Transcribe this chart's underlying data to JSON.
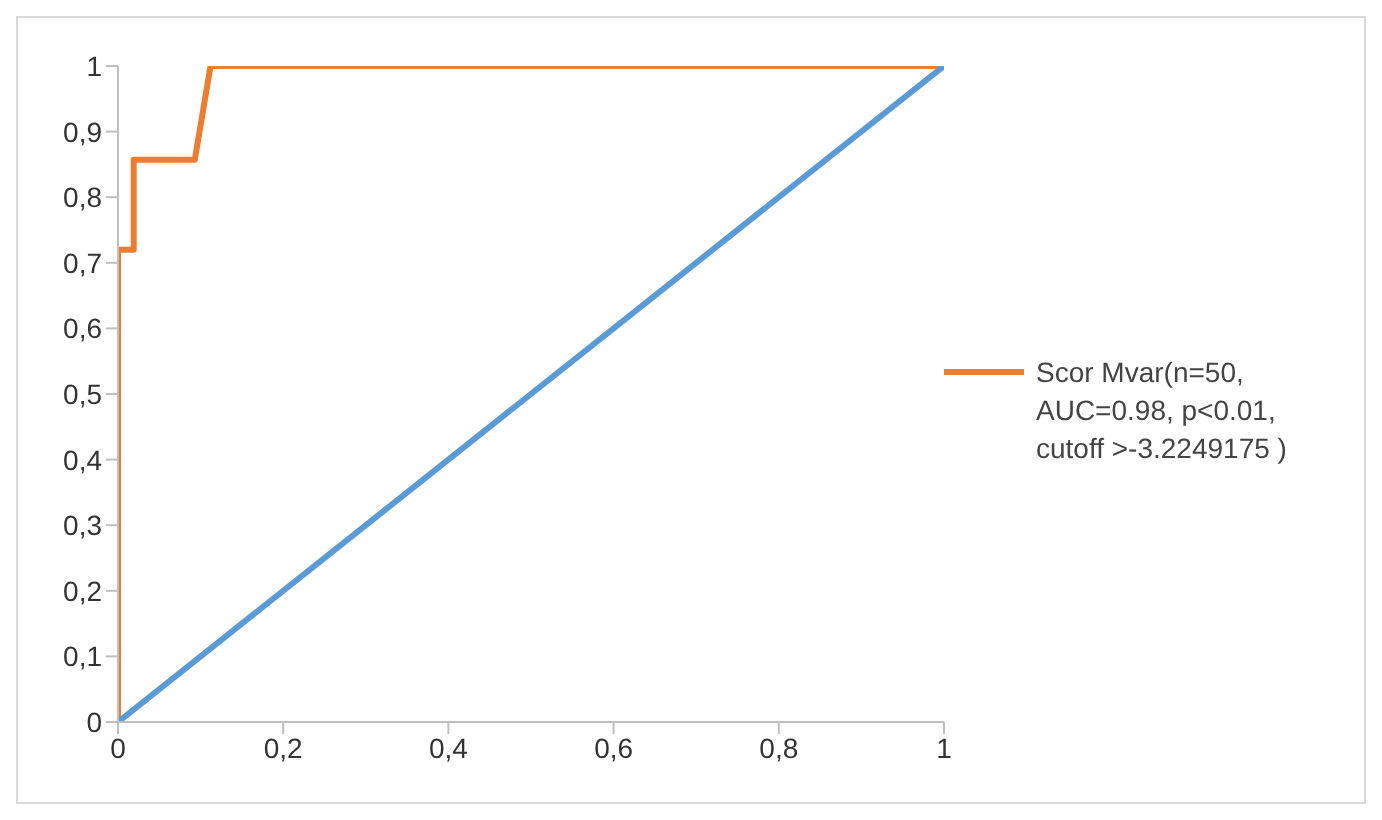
{
  "chart_data": {
    "type": "line",
    "legend": "right",
    "grid": false,
    "marker": "none",
    "line_style": "solid",
    "xlim": [
      0,
      1
    ],
    "ylim": [
      0,
      1
    ],
    "xticks": [
      0,
      {
        "value": 0.2,
        "label": "0,2"
      },
      {
        "value": 0.4,
        "label": "0,4"
      },
      {
        "value": 0.6,
        "label": "0,6"
      },
      {
        "value": 0.8,
        "label": "0,8"
      },
      1
    ],
    "yticks": [
      0,
      {
        "value": 0.1,
        "label": "0,1"
      },
      {
        "value": 0.2,
        "label": "0,2"
      },
      {
        "value": 0.3,
        "label": "0,3"
      },
      {
        "value": 0.4,
        "label": "0,4"
      },
      {
        "value": 0.5,
        "label": "0,5"
      },
      {
        "value": 0.6,
        "label": "0,6"
      },
      {
        "value": 0.7,
        "label": "0,7"
      },
      {
        "value": 0.8,
        "label": "0,8"
      },
      {
        "value": 0.9,
        "label": "0,9"
      },
      1
    ],
    "series": [
      {
        "name": "Scor Mvar(n=50, AUC=0.98, p<0.01, cutoff >-3.2249175 )",
        "color": "#ed7d31",
        "x": [
          0,
          0,
          0.019,
          0.019,
          0.093,
          0.112,
          1
        ],
        "values": [
          0,
          0.72,
          0.72,
          0.857,
          0.857,
          1,
          1
        ]
      },
      {
        "color": "#5b9bd5",
        "x": [
          0,
          1
        ],
        "values": [
          0,
          1
        ]
      }
    ]
  }
}
